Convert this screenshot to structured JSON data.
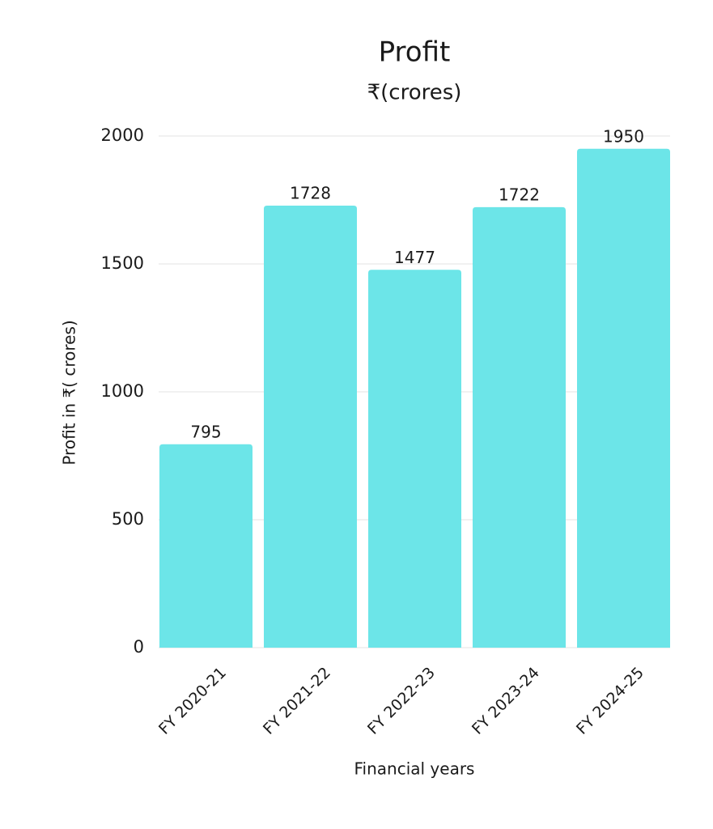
{
  "chart_data": {
    "type": "bar",
    "title": "Profit",
    "subtitle": "₹(crores)",
    "x_label": "Financial years",
    "y_label": "Profit in ₹( crores)",
    "categories": [
      "FY 2020-21",
      "FY 2021-22",
      "FY 2022-23",
      "FY 2023-24",
      "FY 2024-25"
    ],
    "values": [
      795,
      1728,
      1477,
      1722,
      1950
    ],
    "color": "#6ce5e8",
    "ylim": [
      0,
      2000
    ],
    "yticks": [
      0,
      500,
      1000,
      1500,
      2000
    ],
    "grid": true
  }
}
